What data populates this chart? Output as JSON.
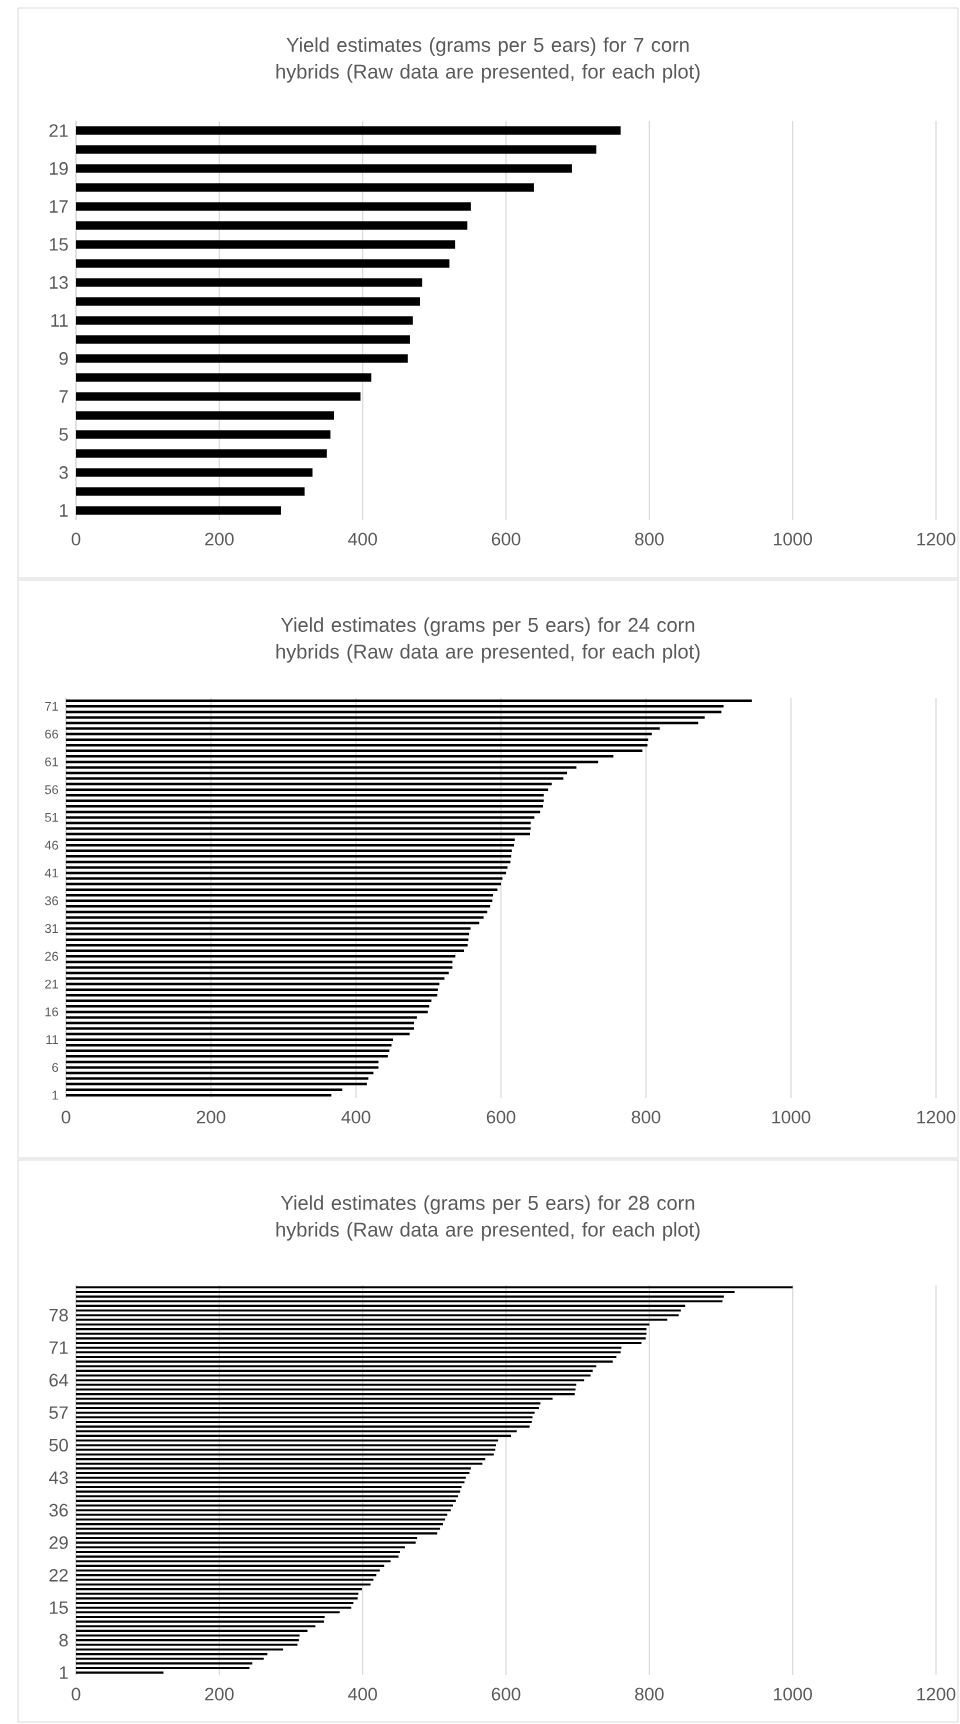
{
  "chart_data": [
    {
      "type": "bar",
      "orientation": "horizontal",
      "title": "Yield estimates (grams per 5 ears) for 7 corn hybrids (Raw data are presented, for each plot)",
      "categories": [
        "21",
        null,
        "19",
        null,
        "17",
        null,
        "15",
        null,
        "13",
        null,
        "11",
        null,
        "9",
        null,
        "7",
        null,
        "5",
        null,
        "3",
        null,
        "1"
      ],
      "values": [
        760,
        726,
        692,
        639,
        551,
        546,
        529,
        521,
        483,
        480,
        470,
        466,
        463,
        412,
        397,
        360,
        355,
        350,
        330,
        319,
        286
      ],
      "color": "#000000",
      "xlim": [
        0,
        1200
      ],
      "xticks": [
        0,
        200,
        400,
        600,
        800,
        1000,
        1200
      ],
      "grid": "x"
    },
    {
      "type": "bar",
      "orientation": "horizontal",
      "title": "Yield estimates (grams per 5 ears) for 24 corn hybrids (Raw data are presented, for each plot)",
      "categories": [
        null,
        "71",
        null,
        null,
        null,
        null,
        "66",
        null,
        null,
        null,
        null,
        "61",
        null,
        null,
        null,
        null,
        "56",
        null,
        null,
        null,
        null,
        "51",
        null,
        null,
        null,
        null,
        "46",
        null,
        null,
        null,
        null,
        "41",
        null,
        null,
        null,
        null,
        "36",
        null,
        null,
        null,
        null,
        "31",
        null,
        null,
        null,
        null,
        "26",
        null,
        null,
        null,
        null,
        "21",
        null,
        null,
        null,
        null,
        "16",
        null,
        null,
        null,
        null,
        "11",
        null,
        null,
        null,
        null,
        "6",
        null,
        null,
        null,
        null,
        "1"
      ],
      "values": [
        946,
        907,
        904,
        881,
        872,
        819,
        808,
        803,
        802,
        795,
        755,
        734,
        704,
        691,
        686,
        670,
        665,
        659,
        659,
        658,
        654,
        646,
        641,
        641,
        640,
        619,
        618,
        615,
        614,
        613,
        609,
        607,
        602,
        600,
        595,
        589,
        588,
        585,
        581,
        576,
        570,
        558,
        556,
        555,
        554,
        549,
        537,
        533,
        533,
        528,
        522,
        515,
        513,
        512,
        504,
        501,
        499,
        484,
        480,
        480,
        474,
        451,
        449,
        446,
        444,
        431,
        431,
        424,
        417,
        415,
        381,
        366
      ],
      "color": "#000000",
      "xlim": [
        0,
        1200
      ],
      "xticks": [
        0,
        200,
        400,
        600,
        800,
        1000,
        1200
      ],
      "grid": "x"
    },
    {
      "type": "bar",
      "orientation": "horizontal",
      "title": "Yield estimates (grams per 5 ears) for 28 corn hybrids (Raw data are presented, for each plot)",
      "categories": [
        null,
        null,
        null,
        null,
        null,
        null,
        "78",
        null,
        null,
        null,
        null,
        null,
        null,
        "71",
        null,
        null,
        null,
        null,
        null,
        null,
        "64",
        null,
        null,
        null,
        null,
        null,
        null,
        "57",
        null,
        null,
        null,
        null,
        null,
        null,
        "50",
        null,
        null,
        null,
        null,
        null,
        null,
        "43",
        null,
        null,
        null,
        null,
        null,
        null,
        "36",
        null,
        null,
        null,
        null,
        null,
        null,
        "29",
        null,
        null,
        null,
        null,
        null,
        null,
        "22",
        null,
        null,
        null,
        null,
        null,
        null,
        "15",
        null,
        null,
        null,
        null,
        null,
        null,
        "8",
        null,
        null,
        null,
        null,
        null,
        null,
        "1"
      ],
      "values": [
        1000,
        919,
        904,
        902,
        850,
        844,
        841,
        825,
        800,
        796,
        796,
        795,
        789,
        761,
        760,
        754,
        749,
        726,
        721,
        718,
        709,
        698,
        697,
        696,
        665,
        648,
        646,
        640,
        637,
        636,
        633,
        615,
        607,
        589,
        586,
        585,
        583,
        571,
        567,
        551,
        549,
        544,
        542,
        538,
        536,
        533,
        530,
        526,
        523,
        518,
        515,
        512,
        508,
        504,
        476,
        474,
        459,
        452,
        450,
        439,
        430,
        424,
        419,
        415,
        411,
        399,
        394,
        393,
        387,
        384,
        368,
        347,
        346,
        334,
        323,
        312,
        311,
        309,
        289,
        267,
        262,
        246,
        242,
        122
      ],
      "color": "#000000",
      "xlim": [
        0,
        1200
      ],
      "xticks": [
        0,
        200,
        400,
        600,
        800,
        1000,
        1200
      ],
      "grid": "x"
    }
  ]
}
